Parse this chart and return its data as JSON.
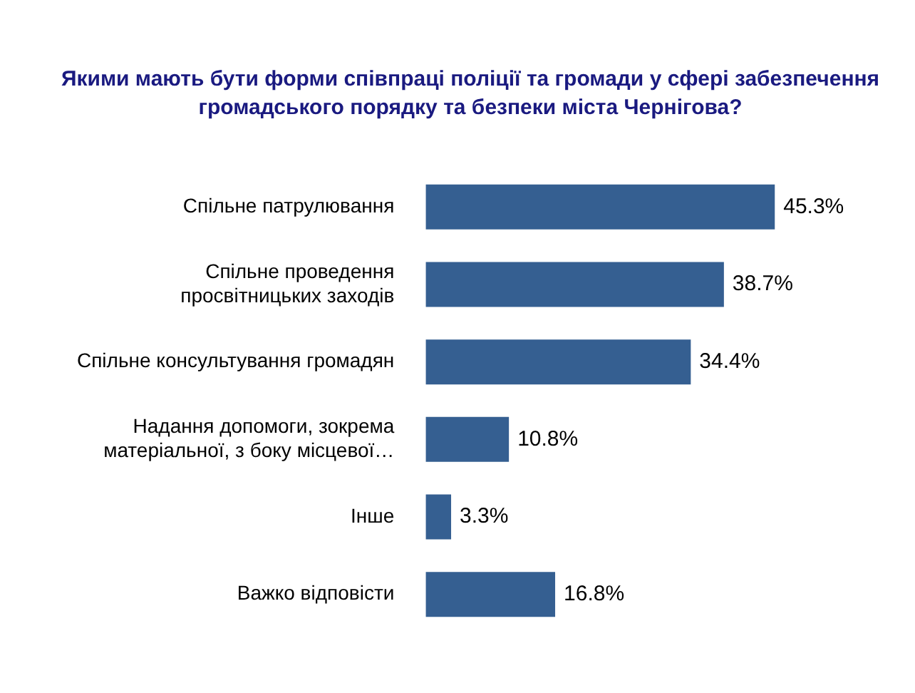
{
  "chart_data": {
    "type": "bar",
    "orientation": "horizontal",
    "title": "Якими мають бути форми співпраці поліції та громади у сфері забезпечення громадського порядку та безпеки міста Чернігова?",
    "categories": [
      "Спільне патрулювання",
      "Спільне проведення просвітницьких заходів",
      "Спільне консультування громадян",
      "Надання допомоги, зокрема матеріальної, з боку місцевої…",
      "Інше",
      "Важко відповісти"
    ],
    "values": [
      45.3,
      38.7,
      34.4,
      10.8,
      3.3,
      16.8
    ],
    "value_labels": [
      "45.3%",
      "38.7%",
      "34.4%",
      "10.8%",
      "3.3%",
      "16.8%"
    ],
    "color": "#355f91"
  }
}
